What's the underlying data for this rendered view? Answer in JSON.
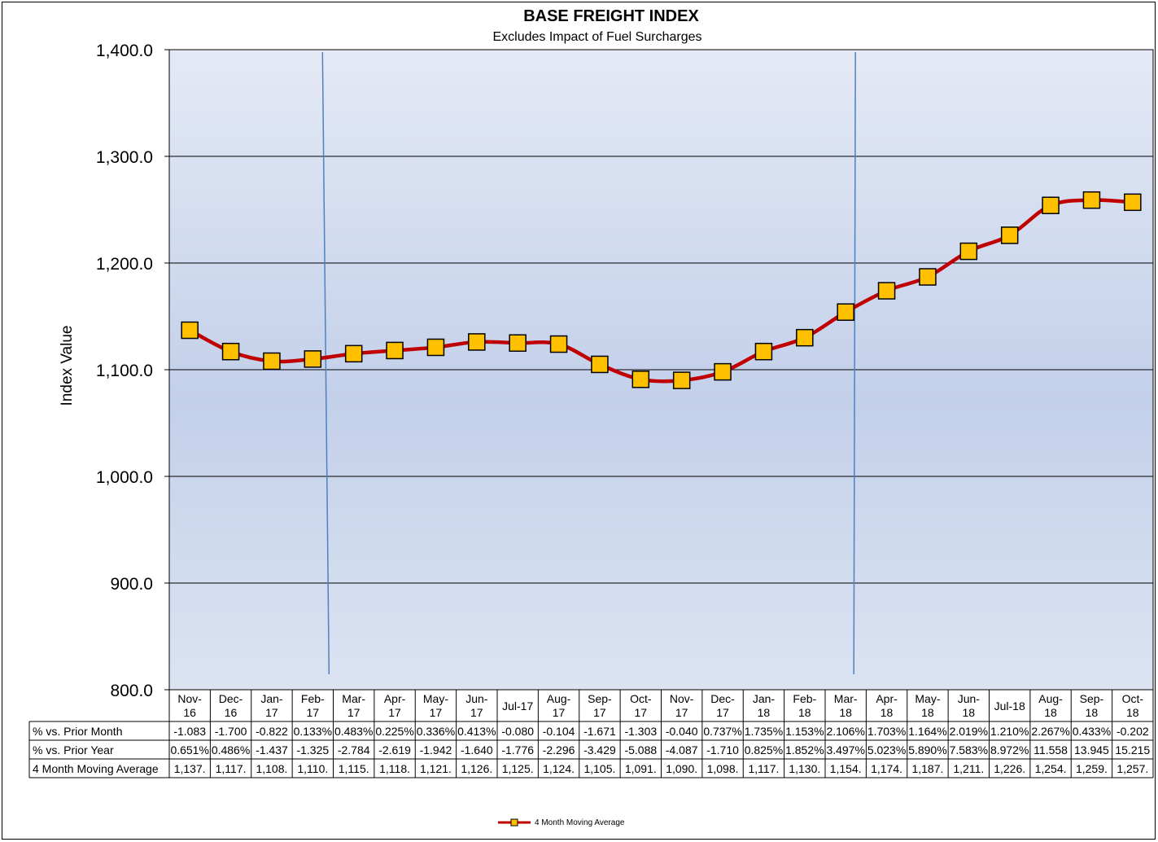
{
  "colors": {
    "line": "#c00000",
    "marker_fill": "#ffc000",
    "marker_stroke": "#000000",
    "plot_bg_top": "#e4e9f5",
    "plot_bg_mid": "#c3d0ea",
    "plot_bg_bottom": "#dce4f2",
    "vline": "#4f81bd",
    "grid": "#000000"
  },
  "chart_data": {
    "type": "line",
    "title": "BASE FREIGHT INDEX",
    "subtitle": "Excludes Impact of Fuel Surcharges",
    "xlabel": "",
    "ylabel": "Index Value",
    "ylim": [
      800,
      1400
    ],
    "yticks": [
      1400,
      1300,
      1200,
      1100,
      1000,
      900,
      800
    ],
    "ytick_labels": [
      "1,400.0",
      "1,300.0",
      "1,200.0",
      "1,100.0",
      "1,000.0",
      "900.0",
      "800.0"
    ],
    "grid": true,
    "legend_position": "bottom-center",
    "categories": [
      "Nov-16",
      "Dec-16",
      "Jan-17",
      "Feb-17",
      "Mar-17",
      "Apr-17",
      "May-17",
      "Jun-17",
      "Jul-17",
      "Aug-17",
      "Sep-17",
      "Oct-17",
      "Nov-17",
      "Dec-17",
      "Jan-18",
      "Feb-18",
      "Mar-18",
      "Apr-18",
      "May-18",
      "Jun-18",
      "Jul-18",
      "Aug-18",
      "Sep-18",
      "Oct-18"
    ],
    "category_labels": [
      [
        "Nov-",
        "16"
      ],
      [
        "Dec-",
        "16"
      ],
      [
        "Jan-",
        "17"
      ],
      [
        "Feb-",
        "17"
      ],
      [
        "Mar-",
        "17"
      ],
      [
        "Apr-",
        "17"
      ],
      [
        "May-",
        "17"
      ],
      [
        "Jun-",
        "17"
      ],
      [
        "Jul-17"
      ],
      [
        "Aug-",
        "17"
      ],
      [
        "Sep-",
        "17"
      ],
      [
        "Oct-",
        "17"
      ],
      [
        "Nov-",
        "17"
      ],
      [
        "Dec-",
        "17"
      ],
      [
        "Jan-",
        "18"
      ],
      [
        "Feb-",
        "18"
      ],
      [
        "Mar-",
        "18"
      ],
      [
        "Apr-",
        "18"
      ],
      [
        "May-",
        "18"
      ],
      [
        "Jun-",
        "18"
      ],
      [
        "Jul-18"
      ],
      [
        "Aug-",
        "18"
      ],
      [
        "Sep-",
        "18"
      ],
      [
        "Oct-",
        "18"
      ]
    ],
    "series": [
      {
        "name": "4 Month Moving Average",
        "values": [
          1137,
          1117,
          1108,
          1110,
          1115,
          1118,
          1121,
          1126,
          1125,
          1124,
          1105,
          1091,
          1090,
          1098,
          1117,
          1130,
          1154,
          1174,
          1187,
          1211,
          1226,
          1254,
          1259,
          1257
        ]
      }
    ],
    "vertical_markers": [
      "Feb-17",
      "Mar-18"
    ],
    "data_table": {
      "rows": [
        {
          "label": "% vs. Prior Month",
          "cells": [
            "-1.083",
            "-1.700",
            "-0.822",
            "0.133%",
            "0.483%",
            "0.225%",
            "0.336%",
            "0.413%",
            "-0.080",
            "-0.104",
            "-1.671",
            "-1.303",
            "-0.040",
            "0.737%",
            "1.735%",
            "1.153%",
            "2.106%",
            "1.703%",
            "1.164%",
            "2.019%",
            "1.210%",
            "2.267%",
            "0.433%",
            "-0.202"
          ]
        },
        {
          "label": "% vs. Prior Year",
          "cells": [
            "0.651%",
            "0.486%",
            "-1.437",
            "-1.325",
            "-2.784",
            "-2.619",
            "-1.942",
            "-1.640",
            "-1.776",
            "-2.296",
            "-3.429",
            "-5.088",
            "-4.087",
            "-1.710",
            "0.825%",
            "1.852%",
            "3.497%",
            "5.023%",
            "5.890%",
            "7.583%",
            "8.972%",
            "11.558",
            "13.945",
            "15.215"
          ]
        },
        {
          "label": "4 Month Moving Average",
          "cells": [
            "1,137.",
            "1,117.",
            "1,108.",
            "1,110.",
            "1,115.",
            "1,118.",
            "1,121.",
            "1,126.",
            "1,125.",
            "1,124.",
            "1,105.",
            "1,091.",
            "1,090.",
            "1,098.",
            "1,117.",
            "1,130.",
            "1,154.",
            "1,174.",
            "1,187.",
            "1,211.",
            "1,226.",
            "1,254.",
            "1,259.",
            "1,257."
          ]
        }
      ]
    }
  }
}
